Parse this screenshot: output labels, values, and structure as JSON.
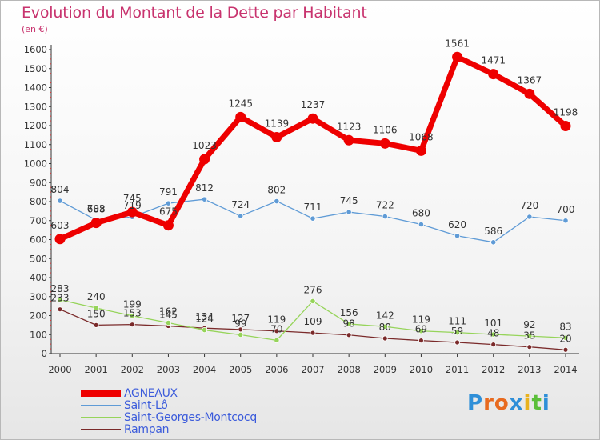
{
  "header": {
    "title": "Evolution du Montant de la Dette par Habitant",
    "unit": "(en €)"
  },
  "brand": {
    "logo_letters": [
      "P",
      "r",
      "o",
      "x",
      "i",
      "t",
      "i"
    ],
    "logo_colors": [
      "#2f8fd8",
      "#e86a1f",
      "#e86a1f",
      "#2f8fd8",
      "#e8b21f",
      "#5bbf3a",
      "#2f8fd8"
    ]
  },
  "chart_data": {
    "type": "line",
    "title": "Evolution du Montant de la Dette par Habitant",
    "ylabel": "(en €)",
    "xlabel": "",
    "x": [
      "2000",
      "2001",
      "2002",
      "2003",
      "2004",
      "2005",
      "2006",
      "2007",
      "2008",
      "2009",
      "2010",
      "2011",
      "2012",
      "2013",
      "2014"
    ],
    "ylim": [
      0,
      1600
    ],
    "yticks": [
      "0",
      "100",
      "200",
      "300",
      "400",
      "500",
      "600",
      "700",
      "800",
      "900",
      "1000",
      "1100",
      "1200",
      "1300",
      "1400",
      "1500",
      "1600"
    ],
    "grid": false,
    "legend_position": "bottom-left",
    "series": [
      {
        "name": "AGNEAUX",
        "color": "#ee0000",
        "values": [
          603,
          688,
          745,
          675,
          1023,
          1245,
          1139,
          1237,
          1123,
          1106,
          1068,
          1561,
          1471,
          1367,
          1198
        ],
        "labels": [
          "603",
          "688",
          "745",
          "675",
          "1023",
          "1245",
          "1139",
          "1237",
          "1123",
          "1106",
          "1068",
          "1561",
          "1471",
          "1367",
          "1198"
        ]
      },
      {
        "name": "Saint-Lô",
        "color": "#5f9bd6",
        "values": [
          804,
          703,
          719,
          791,
          812,
          724,
          802,
          711,
          745,
          722,
          680,
          620,
          586,
          720,
          700
        ],
        "labels": [
          "804",
          "703",
          "719",
          "791",
          "812",
          "724",
          "802",
          "711",
          "745",
          "722",
          "680",
          "620",
          "586",
          "720",
          "700"
        ]
      },
      {
        "name": "Saint-Georges-Montcocq",
        "color": "#96d45a",
        "values": [
          283,
          240,
          199,
          162,
          124,
          99,
          70,
          276,
          156,
          142,
          119,
          111,
          101,
          92,
          83
        ],
        "labels": [
          "283",
          "240",
          "199",
          "162",
          "124",
          "99",
          "70",
          "276",
          "156",
          "142",
          "119",
          "111",
          "101",
          "92",
          "83"
        ]
      },
      {
        "name": "Rampan",
        "color": "#7a2a2a",
        "values": [
          233,
          150,
          153,
          145,
          134,
          127,
          119,
          109,
          98,
          80,
          69,
          59,
          48,
          35,
          20
        ],
        "labels": [
          "233",
          "150",
          "153",
          "145",
          "134",
          "127",
          "119",
          "109",
          "98",
          "80",
          "69",
          "59",
          "48",
          "35",
          "20"
        ]
      }
    ]
  }
}
